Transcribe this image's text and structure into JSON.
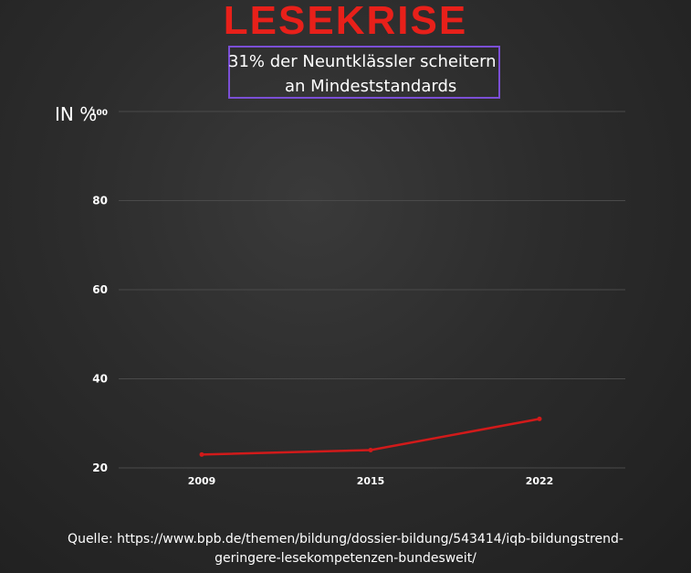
{
  "header": {
    "title": "LESEKRISE",
    "subtitle_line1": "31% der Neuntklässler scheitern",
    "subtitle_line2": "an Mindeststandards"
  },
  "unit_label": "IN %",
  "source": {
    "line1": "Quelle: https://www.bpb.de/themen/bildung/dossier-bildung/543414/iqb-bildungstrend-",
    "line2": "geringere-lesekompetenzen-bundesweit/"
  },
  "colors": {
    "title": "#e8201a",
    "line": "#d11a1a",
    "subtitle_border": "#7b4fd6",
    "grid": "#4a4a4a"
  },
  "chart_data": {
    "type": "line",
    "categories": [
      "2009",
      "2015",
      "2022"
    ],
    "series": [
      {
        "values": [
          23,
          24,
          31
        ]
      }
    ],
    "yticks": [
      "20",
      "40",
      "60",
      "80",
      "100"
    ],
    "ylim": [
      20,
      100
    ],
    "grid": true
  }
}
